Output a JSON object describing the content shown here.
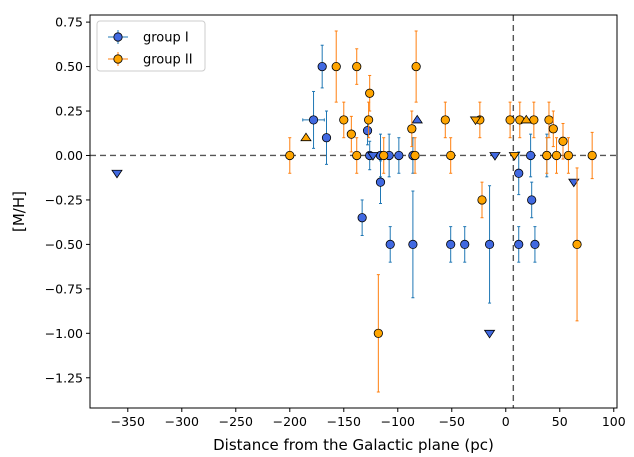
{
  "chart_data": {
    "type": "scatter",
    "xlabel": "Distance from the Galactic plane (pc)",
    "ylabel": "[M/H]",
    "xlim": [
      -385,
      103
    ],
    "ylim": [
      -1.42,
      0.79
    ],
    "x_ticks": [
      -350,
      -300,
      -250,
      -200,
      -150,
      -100,
      -50,
      0,
      50,
      100
    ],
    "x_tick_labels": [
      "−350",
      "−300",
      "−250",
      "−200",
      "−150",
      "−100",
      "−50",
      "0",
      "50",
      "100"
    ],
    "y_ticks": [
      0.75,
      0.5,
      0.25,
      0.0,
      -0.25,
      -0.5,
      -0.75,
      -1.0,
      -1.25
    ],
    "y_tick_labels": [
      "0.75",
      "0.50",
      "0.25",
      "0.00",
      "−0.25",
      "−0.50",
      "−0.75",
      "−1.00",
      "−1.25"
    ],
    "grid": false,
    "legend_position": "top-left",
    "reference_lines": {
      "horizontal_y": 0.0,
      "vertical_x": 7
    },
    "colors": {
      "group_I": "#4169E1",
      "group_I_err": "#1f77b4",
      "group_II": "#FFA500",
      "group_II_err": "#ff7f0e",
      "ref_line": "#555555"
    },
    "series": [
      {
        "name": "group I",
        "points": [
          {
            "x": -170,
            "y": 0.5,
            "yerr": [
              0.12,
              0.12
            ]
          },
          {
            "x": -178,
            "y": 0.2,
            "yerr": [
              0.16,
              0.16
            ],
            "xerr": [
              10,
              10
            ]
          },
          {
            "x": -166,
            "y": 0.1,
            "yerr": [
              0.15,
              0.15
            ]
          },
          {
            "x": -128,
            "y": 0.14,
            "yerr": [
              0.08,
              0.08
            ]
          },
          {
            "x": -126,
            "y": 0.0,
            "yerr": [
              0.08,
              0.08
            ]
          },
          {
            "x": -116,
            "y": 0.0,
            "yerr": [
              0.12,
              0.12
            ]
          },
          {
            "x": -108,
            "y": 0.0,
            "yerr": [
              0.12,
              0.12
            ]
          },
          {
            "x": -99,
            "y": 0.0,
            "yerr": [
              0.1,
              0.1
            ]
          },
          {
            "x": -86,
            "y": 0.0,
            "yerr": [
              0.1,
              0.1
            ]
          },
          {
            "x": -116,
            "y": -0.15,
            "yerr": [
              0.12,
              0.12
            ]
          },
          {
            "x": -133,
            "y": -0.35,
            "yerr": [
              0.1,
              0.1
            ]
          },
          {
            "x": -107,
            "y": -0.5,
            "yerr": [
              0.1,
              0.1
            ]
          },
          {
            "x": -86,
            "y": -0.5,
            "yerr": [
              0.3,
              0.3
            ]
          },
          {
            "x": -51,
            "y": -0.5,
            "yerr": [
              0.1,
              0.1
            ]
          },
          {
            "x": -38,
            "y": -0.5,
            "yerr": [
              0.1,
              0.1
            ]
          },
          {
            "x": -15,
            "y": -0.5,
            "yerr": [
              0.33,
              0.33
            ]
          },
          {
            "x": 12,
            "y": -0.1,
            "yerr": [
              0.12,
              0.12
            ]
          },
          {
            "x": 12,
            "y": -0.5,
            "yerr": [
              0.1,
              0.1
            ]
          },
          {
            "x": 23,
            "y": 0.0,
            "yerr": [
              0.12,
              0.12
            ]
          },
          {
            "x": 24,
            "y": -0.25,
            "yerr": [
              0.1,
              0.1
            ]
          },
          {
            "x": 27,
            "y": -0.5,
            "yerr": [
              0.1,
              0.1
            ]
          },
          {
            "x": 38,
            "y": 0.0,
            "yerr": [
              0.12,
              0.12
            ]
          }
        ],
        "upper_limits": [
          {
            "x": -360,
            "y": -0.1
          },
          {
            "x": -123,
            "y": 0.0
          },
          {
            "x": -10,
            "y": 0.0
          },
          {
            "x": -15,
            "y": -1.0
          },
          {
            "x": 63,
            "y": -0.15
          }
        ],
        "lower_limits": [
          {
            "x": -82,
            "y": 0.2
          }
        ]
      },
      {
        "name": "group II",
        "points": [
          {
            "x": -200,
            "y": 0.0,
            "yerr": [
              0.1,
              0.1
            ]
          },
          {
            "x": -157,
            "y": 0.5,
            "yerr": [
              0.2,
              0.2
            ]
          },
          {
            "x": -138,
            "y": 0.5,
            "yerr": [
              0.1,
              0.1
            ]
          },
          {
            "x": -150,
            "y": 0.2,
            "yerr": [
              0.1,
              0.1
            ]
          },
          {
            "x": -143,
            "y": 0.12,
            "yerr": [
              0.1,
              0.1
            ]
          },
          {
            "x": -126,
            "y": 0.35,
            "yerr": [
              0.1,
              0.1
            ]
          },
          {
            "x": -127,
            "y": 0.2,
            "yerr": [
              0.1,
              0.1
            ]
          },
          {
            "x": -138,
            "y": 0.0,
            "yerr": [
              0.1,
              0.1
            ]
          },
          {
            "x": -113,
            "y": 0.0,
            "yerr": [
              0.1,
              0.1
            ]
          },
          {
            "x": -118,
            "y": -1.0,
            "yerr": [
              0.33,
              0.33
            ]
          },
          {
            "x": -83,
            "y": 0.5,
            "yerr": [
              0.2,
              0.2
            ]
          },
          {
            "x": -87,
            "y": 0.15,
            "yerr": [
              0.1,
              0.1
            ]
          },
          {
            "x": -84,
            "y": 0.0,
            "yerr": [
              0.1,
              0.1
            ]
          },
          {
            "x": -56,
            "y": 0.2,
            "yerr": [
              0.1,
              0.1
            ]
          },
          {
            "x": -51,
            "y": 0.0,
            "yerr": [
              0.1,
              0.1
            ]
          },
          {
            "x": -24,
            "y": 0.2,
            "yerr": [
              0.1,
              0.1
            ]
          },
          {
            "x": -22,
            "y": -0.25,
            "yerr": [
              0.1,
              0.1
            ]
          },
          {
            "x": 4,
            "y": 0.2,
            "yerr": [
              0.1,
              0.1
            ]
          },
          {
            "x": 13,
            "y": 0.2,
            "yerr": [
              0.1,
              0.1
            ]
          },
          {
            "x": 26,
            "y": 0.2,
            "yerr": [
              0.1,
              0.1
            ]
          },
          {
            "x": 40,
            "y": 0.2,
            "yerr": [
              0.1,
              0.1
            ]
          },
          {
            "x": 44,
            "y": 0.15,
            "yerr": [
              0.1,
              0.1
            ]
          },
          {
            "x": 53,
            "y": 0.08,
            "yerr": [
              0.1,
              0.1
            ]
          },
          {
            "x": 38,
            "y": 0.0,
            "yerr": [
              0.1,
              0.1
            ]
          },
          {
            "x": 47,
            "y": 0.0,
            "yerr": [
              0.1,
              0.1
            ]
          },
          {
            "x": 58,
            "y": 0.0,
            "yerr": [
              0.1,
              0.1
            ]
          },
          {
            "x": 80,
            "y": 0.0,
            "yerr": [
              0.13,
              0.13
            ]
          },
          {
            "x": 66,
            "y": -0.5,
            "yerr": [
              0.43,
              0.43
            ]
          }
        ],
        "upper_limits": [
          {
            "x": -28,
            "y": 0.2
          },
          {
            "x": 8,
            "y": 0.0
          }
        ],
        "lower_limits": [
          {
            "x": -185,
            "y": 0.1
          },
          {
            "x": 19,
            "y": 0.2
          }
        ]
      }
    ]
  }
}
